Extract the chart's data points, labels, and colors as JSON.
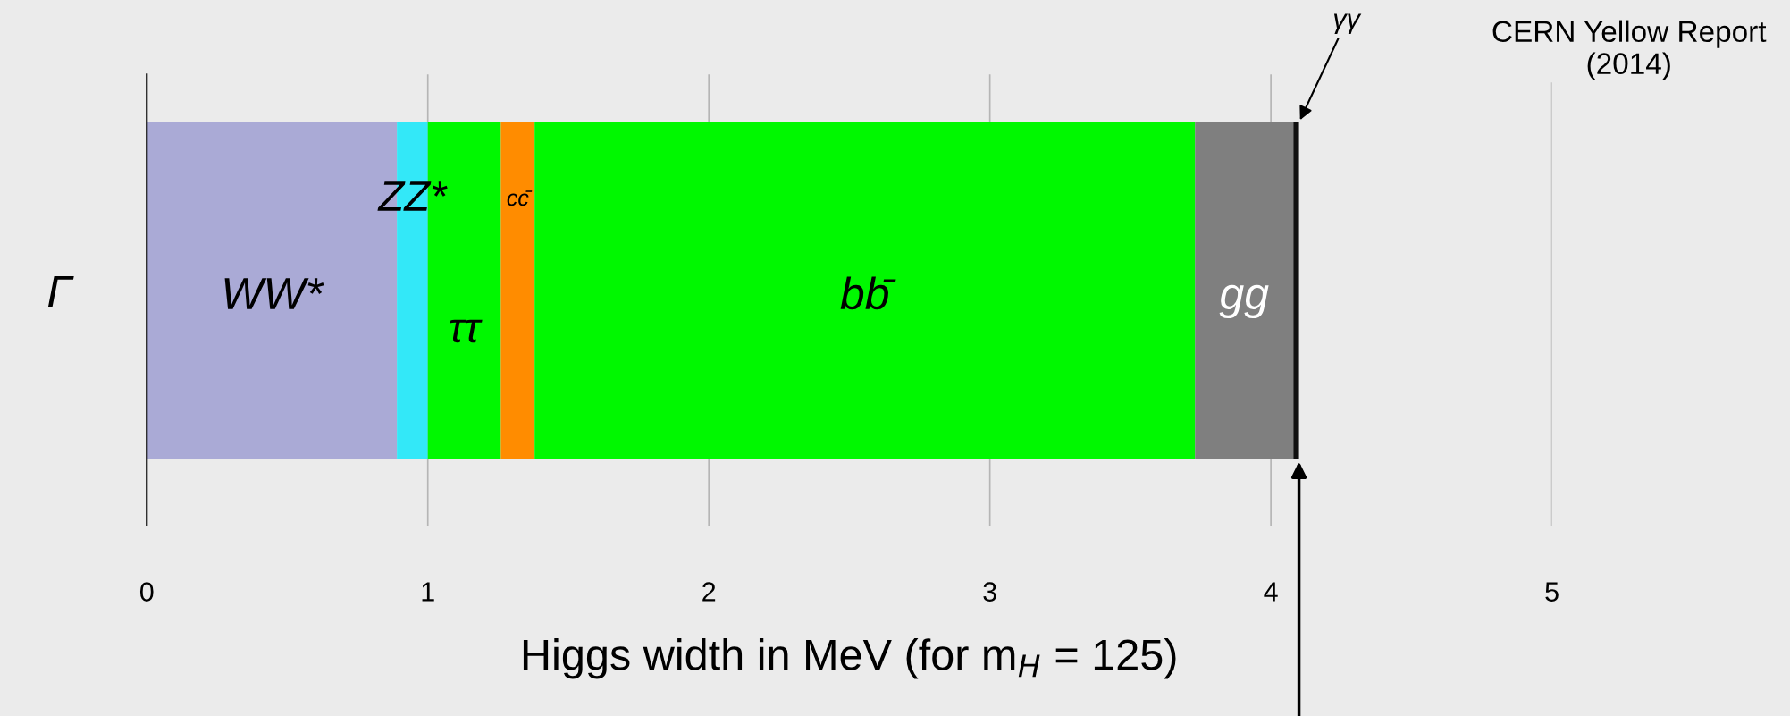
{
  "chart_data": {
    "type": "bar",
    "orientation": "horizontal",
    "stacked": true,
    "categories": [
      "Γ"
    ],
    "xlabel": "Higgs width in MeV (for m$_{H}$ = 125)",
    "xlim": [
      0,
      5
    ],
    "xticks": [
      0,
      1,
      2,
      3,
      4,
      5
    ],
    "grid": "x",
    "legend": false,
    "annotations": [
      "CERN Yellow Report (2014)"
    ],
    "series": [
      {
        "name": "WW*",
        "color": "#aaaad6",
        "values": [
          0.89
        ]
      },
      {
        "name": "ZZ*",
        "color": "#33e8f8",
        "values": [
          0.11
        ]
      },
      {
        "name": "ττ",
        "color": "#00f800",
        "values": [
          0.26
        ]
      },
      {
        "name": "cc̄",
        "color": "#ff8c00",
        "values": [
          0.12
        ]
      },
      {
        "name": "bb̄",
        "color": "#00f800",
        "values": [
          2.35
        ]
      },
      {
        "name": "gg",
        "color": "#7f7f7f",
        "values": [
          0.35
        ]
      },
      {
        "name": "γγ",
        "color": "#111111",
        "values": [
          0.02
        ]
      }
    ]
  }
}
